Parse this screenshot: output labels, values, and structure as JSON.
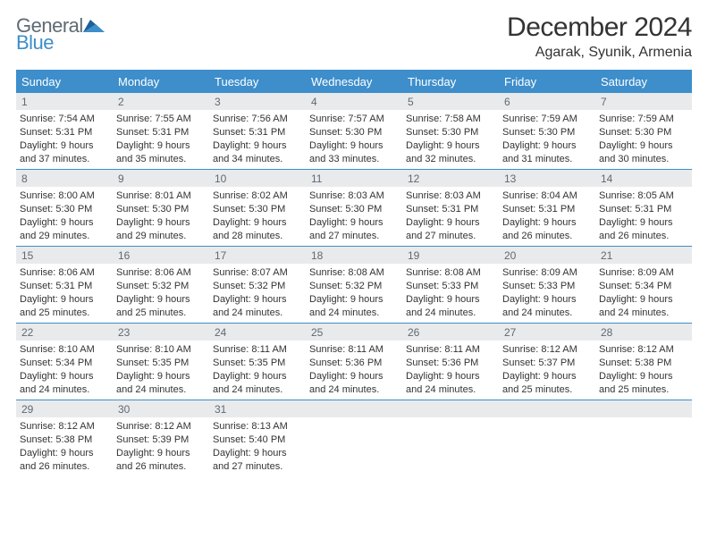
{
  "logo": {
    "top": "General",
    "bottom": "Blue"
  },
  "header": {
    "month_title": "December 2024",
    "location": "Agarak, Syunik, Armenia"
  },
  "day_labels": [
    "Sunday",
    "Monday",
    "Tuesday",
    "Wednesday",
    "Thursday",
    "Friday",
    "Saturday"
  ],
  "colors": {
    "accent": "#3d8ecb",
    "daynum_bg": "#e9eaec",
    "text": "#333333",
    "logo_gray": "#5f6a72"
  },
  "weeks": [
    [
      {
        "n": "1",
        "sr": "7:54 AM",
        "ss": "5:31 PM",
        "dl": "9 hours and 37 minutes."
      },
      {
        "n": "2",
        "sr": "7:55 AM",
        "ss": "5:31 PM",
        "dl": "9 hours and 35 minutes."
      },
      {
        "n": "3",
        "sr": "7:56 AM",
        "ss": "5:31 PM",
        "dl": "9 hours and 34 minutes."
      },
      {
        "n": "4",
        "sr": "7:57 AM",
        "ss": "5:30 PM",
        "dl": "9 hours and 33 minutes."
      },
      {
        "n": "5",
        "sr": "7:58 AM",
        "ss": "5:30 PM",
        "dl": "9 hours and 32 minutes."
      },
      {
        "n": "6",
        "sr": "7:59 AM",
        "ss": "5:30 PM",
        "dl": "9 hours and 31 minutes."
      },
      {
        "n": "7",
        "sr": "7:59 AM",
        "ss": "5:30 PM",
        "dl": "9 hours and 30 minutes."
      }
    ],
    [
      {
        "n": "8",
        "sr": "8:00 AM",
        "ss": "5:30 PM",
        "dl": "9 hours and 29 minutes."
      },
      {
        "n": "9",
        "sr": "8:01 AM",
        "ss": "5:30 PM",
        "dl": "9 hours and 29 minutes."
      },
      {
        "n": "10",
        "sr": "8:02 AM",
        "ss": "5:30 PM",
        "dl": "9 hours and 28 minutes."
      },
      {
        "n": "11",
        "sr": "8:03 AM",
        "ss": "5:30 PM",
        "dl": "9 hours and 27 minutes."
      },
      {
        "n": "12",
        "sr": "8:03 AM",
        "ss": "5:31 PM",
        "dl": "9 hours and 27 minutes."
      },
      {
        "n": "13",
        "sr": "8:04 AM",
        "ss": "5:31 PM",
        "dl": "9 hours and 26 minutes."
      },
      {
        "n": "14",
        "sr": "8:05 AM",
        "ss": "5:31 PM",
        "dl": "9 hours and 26 minutes."
      }
    ],
    [
      {
        "n": "15",
        "sr": "8:06 AM",
        "ss": "5:31 PM",
        "dl": "9 hours and 25 minutes."
      },
      {
        "n": "16",
        "sr": "8:06 AM",
        "ss": "5:32 PM",
        "dl": "9 hours and 25 minutes."
      },
      {
        "n": "17",
        "sr": "8:07 AM",
        "ss": "5:32 PM",
        "dl": "9 hours and 24 minutes."
      },
      {
        "n": "18",
        "sr": "8:08 AM",
        "ss": "5:32 PM",
        "dl": "9 hours and 24 minutes."
      },
      {
        "n": "19",
        "sr": "8:08 AM",
        "ss": "5:33 PM",
        "dl": "9 hours and 24 minutes."
      },
      {
        "n": "20",
        "sr": "8:09 AM",
        "ss": "5:33 PM",
        "dl": "9 hours and 24 minutes."
      },
      {
        "n": "21",
        "sr": "8:09 AM",
        "ss": "5:34 PM",
        "dl": "9 hours and 24 minutes."
      }
    ],
    [
      {
        "n": "22",
        "sr": "8:10 AM",
        "ss": "5:34 PM",
        "dl": "9 hours and 24 minutes."
      },
      {
        "n": "23",
        "sr": "8:10 AM",
        "ss": "5:35 PM",
        "dl": "9 hours and 24 minutes."
      },
      {
        "n": "24",
        "sr": "8:11 AM",
        "ss": "5:35 PM",
        "dl": "9 hours and 24 minutes."
      },
      {
        "n": "25",
        "sr": "8:11 AM",
        "ss": "5:36 PM",
        "dl": "9 hours and 24 minutes."
      },
      {
        "n": "26",
        "sr": "8:11 AM",
        "ss": "5:36 PM",
        "dl": "9 hours and 24 minutes."
      },
      {
        "n": "27",
        "sr": "8:12 AM",
        "ss": "5:37 PM",
        "dl": "9 hours and 25 minutes."
      },
      {
        "n": "28",
        "sr": "8:12 AM",
        "ss": "5:38 PM",
        "dl": "9 hours and 25 minutes."
      }
    ],
    [
      {
        "n": "29",
        "sr": "8:12 AM",
        "ss": "5:38 PM",
        "dl": "9 hours and 26 minutes."
      },
      {
        "n": "30",
        "sr": "8:12 AM",
        "ss": "5:39 PM",
        "dl": "9 hours and 26 minutes."
      },
      {
        "n": "31",
        "sr": "8:13 AM",
        "ss": "5:40 PM",
        "dl": "9 hours and 27 minutes."
      },
      null,
      null,
      null,
      null
    ]
  ],
  "labels": {
    "sunrise": "Sunrise:",
    "sunset": "Sunset:",
    "daylight": "Daylight:"
  }
}
